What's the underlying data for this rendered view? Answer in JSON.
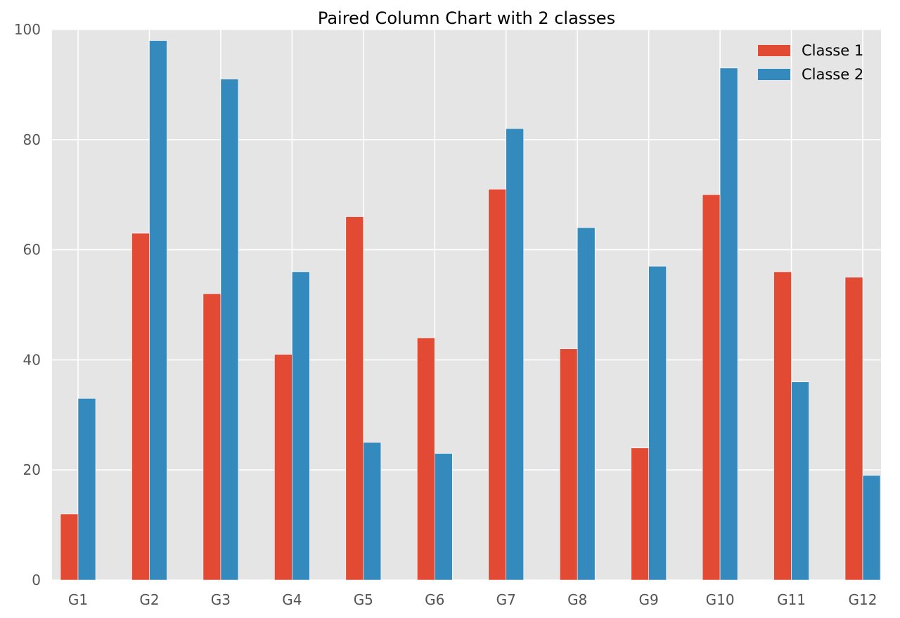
{
  "chart_data": {
    "type": "bar",
    "title": "Paired Column Chart with 2 classes",
    "xlabel": "",
    "ylabel": "",
    "categories": [
      "G1",
      "G2",
      "G3",
      "G4",
      "G5",
      "G6",
      "G7",
      "G8",
      "G9",
      "G10",
      "G11",
      "G12"
    ],
    "series": [
      {
        "name": "Classe 1",
        "color": "#E24A33",
        "values": [
          12,
          63,
          52,
          41,
          66,
          44,
          71,
          42,
          24,
          70,
          56,
          55
        ]
      },
      {
        "name": "Classe 2",
        "color": "#348ABD",
        "values": [
          33,
          98,
          91,
          56,
          25,
          23,
          82,
          64,
          57,
          93,
          36,
          19
        ]
      }
    ],
    "ylim": [
      0,
      100
    ],
    "yticks": [
      0,
      20,
      40,
      60,
      80,
      100
    ],
    "grid": true,
    "legend_position": "top-right",
    "background_color": "#E5E5E5",
    "grid_color": "#FFFFFF"
  }
}
